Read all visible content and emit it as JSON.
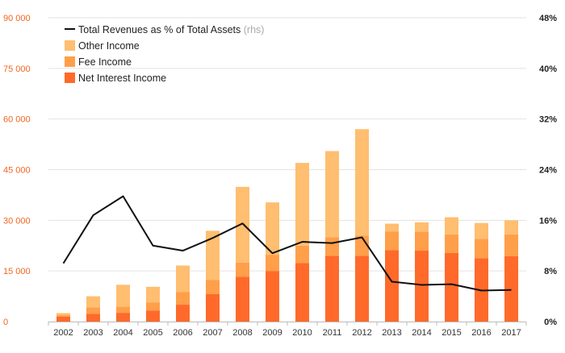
{
  "chart_data": {
    "type": "bar",
    "stacked": true,
    "categories": [
      "2002",
      "2003",
      "2004",
      "2005",
      "2006",
      "2007",
      "2008",
      "2009",
      "2010",
      "2011",
      "2012",
      "2013",
      "2014",
      "2015",
      "2016",
      "2017"
    ],
    "series": [
      {
        "name": "Net Interest Income",
        "color": "#ff6a2a",
        "values": [
          1500,
          2300,
          2600,
          3300,
          5000,
          8200,
          13300,
          15000,
          17300,
          19500,
          19500,
          21200,
          21000,
          20300,
          18800,
          19400
        ]
      },
      {
        "name": "Fee Income",
        "color": "#ff9f4a",
        "values": [
          400,
          1900,
          1800,
          2400,
          3800,
          4100,
          4200,
          4800,
          5200,
          5500,
          6000,
          5500,
          5600,
          5500,
          5700,
          6400
        ]
      },
      {
        "name": "Other Income",
        "color": "#ffbe70",
        "values": [
          600,
          3300,
          6500,
          4600,
          7800,
          14600,
          22400,
          15500,
          24500,
          25500,
          31500,
          2300,
          2800,
          5100,
          4700,
          4200
        ]
      }
    ],
    "line": {
      "name": "Total Revenues as % of Total Assets",
      "axis_note": "(rhs)",
      "color": "#111111",
      "values": [
        9.2,
        16.8,
        19.8,
        12.0,
        11.2,
        13.2,
        15.5,
        10.8,
        12.6,
        12.4,
        13.3,
        6.3,
        5.8,
        5.9,
        4.9,
        5.0
      ]
    },
    "y_left": {
      "min": 0,
      "max": 90000,
      "ticks": [
        "0",
        "15 000",
        "30 000",
        "45 000",
        "60 000",
        "75 000",
        "90 000"
      ],
      "tick_values": [
        0,
        15000,
        30000,
        45000,
        60000,
        75000,
        90000
      ],
      "color": "#f26522"
    },
    "y_right": {
      "min": 0,
      "max": 48,
      "ticks": [
        "0%",
        "8%",
        "16%",
        "24%",
        "32%",
        "40%",
        "48%"
      ],
      "tick_values": [
        0,
        8,
        16,
        24,
        32,
        40,
        48
      ]
    },
    "legend": {
      "placement": "top-left",
      "items": [
        {
          "label": "Total Revenues as % of Total Assets",
          "note": "(rhs)",
          "kind": "line",
          "color": "#111111"
        },
        {
          "label": "Other Income",
          "kind": "box",
          "color": "#ffbe70"
        },
        {
          "label": "Fee Income",
          "kind": "box",
          "color": "#ff9f4a"
        },
        {
          "label": "Net Interest Income",
          "kind": "box",
          "color": "#ff6a2a"
        }
      ]
    },
    "grid": true
  }
}
